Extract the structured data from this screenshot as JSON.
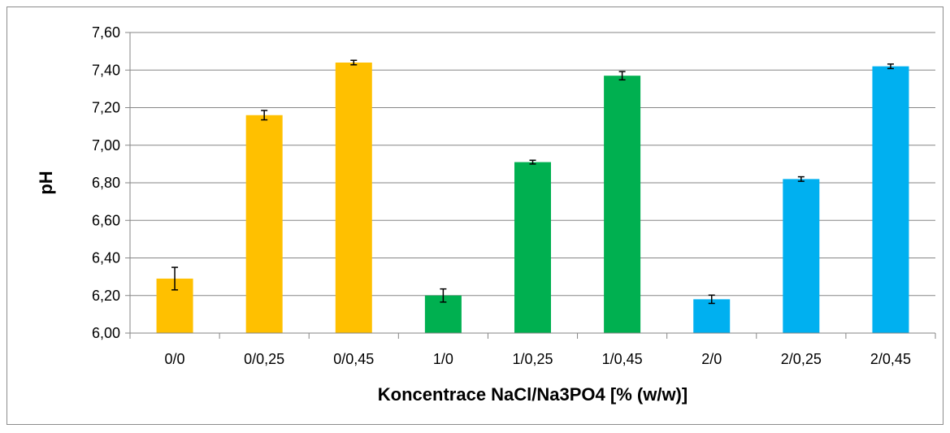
{
  "chart_data": {
    "type": "bar",
    "title": "",
    "xlabel": "Koncentrace NaCl/Na3PO4 [% (w/w)]",
    "ylabel": "pH",
    "ylim": [
      6.0,
      7.6
    ],
    "yticks": [
      "6,00",
      "6,20",
      "6,40",
      "6,60",
      "6,80",
      "7,00",
      "7,20",
      "7,40",
      "7,60"
    ],
    "ytick_values": [
      6.0,
      6.2,
      6.4,
      6.6,
      6.8,
      7.0,
      7.2,
      7.4,
      7.6
    ],
    "grid": true,
    "legend": "none",
    "categories": [
      "0/0",
      "0/0,25",
      "0/0,45",
      "1/0",
      "1/0,25",
      "1/0,45",
      "2/0",
      "2/0,25",
      "2/0,45"
    ],
    "values": [
      6.29,
      7.16,
      7.44,
      6.2,
      6.91,
      7.37,
      6.18,
      6.82,
      7.42
    ],
    "errors": [
      0.06,
      0.025,
      0.012,
      0.035,
      0.01,
      0.022,
      0.022,
      0.012,
      0.012
    ],
    "colors": [
      "#FFC000",
      "#FFC000",
      "#FFC000",
      "#00B050",
      "#00B050",
      "#00B050",
      "#00B0F0",
      "#00B0F0",
      "#00B0F0"
    ]
  }
}
